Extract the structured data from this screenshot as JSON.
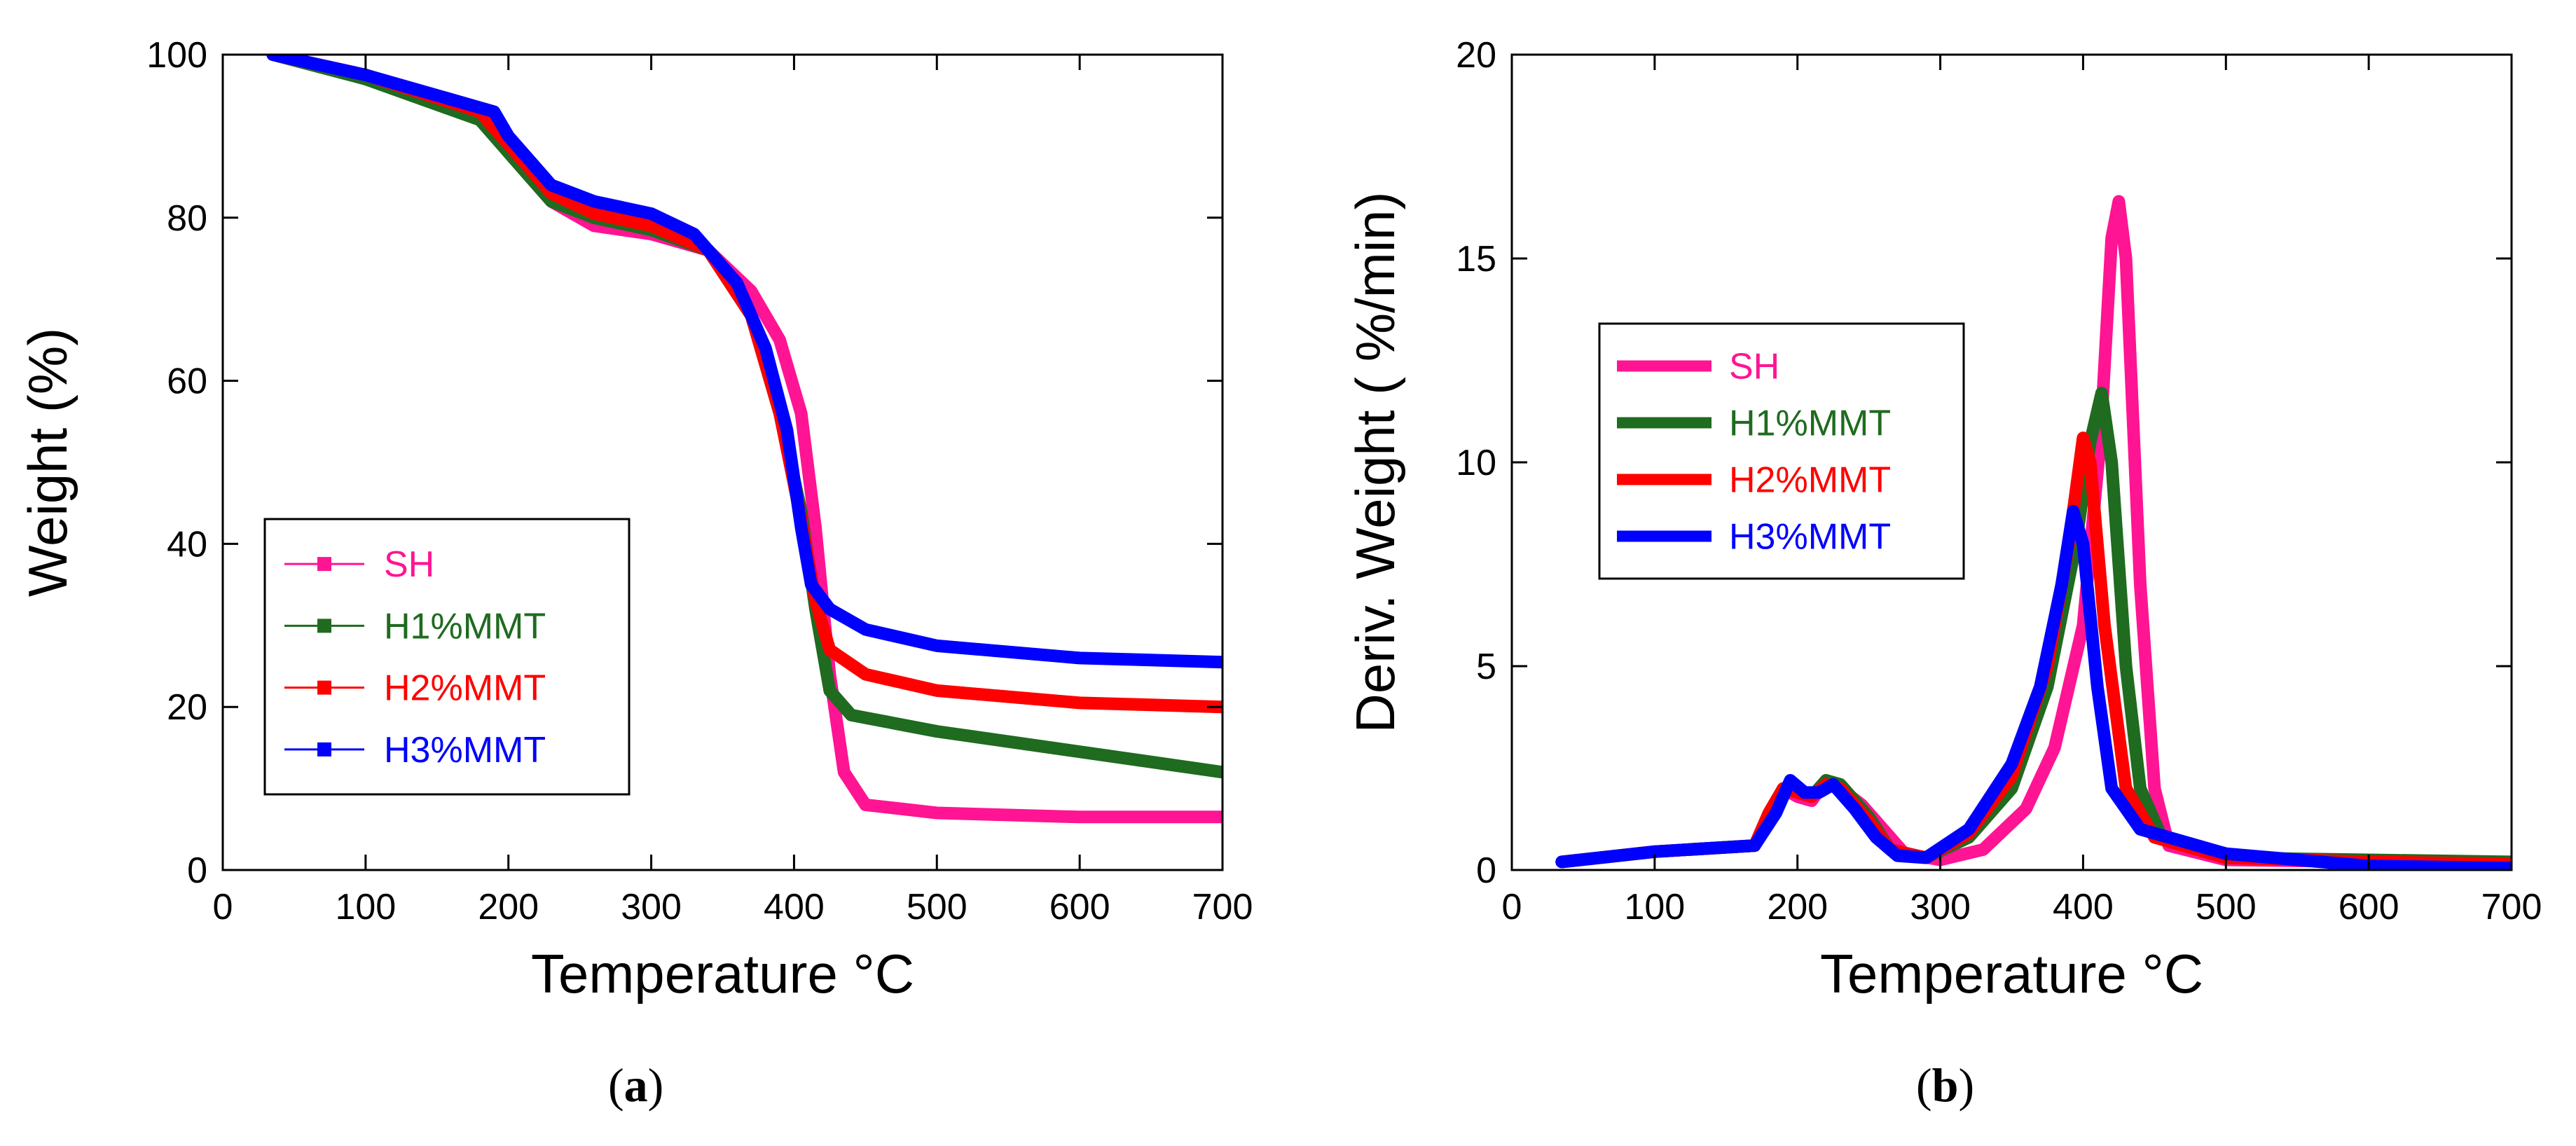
{
  "colors": {
    "SH": "#ff1493",
    "H1": "#1f6b1f",
    "H2": "#ff0000",
    "H3": "#0000ff",
    "frame": "#000000"
  },
  "chart_data": [
    {
      "id": "a",
      "panel_label": "a",
      "type": "line",
      "xlabel": "Temperature °C",
      "ylabel": "Weight (%)",
      "xlim": [
        0,
        700
      ],
      "ylim": [
        0,
        100
      ],
      "xticks": [
        "0",
        "100",
        "200",
        "300",
        "400",
        "500",
        "600",
        "700"
      ],
      "yticks": [
        "0",
        "20",
        "40",
        "60",
        "80",
        "100"
      ],
      "legend_position": "lower-left",
      "series": [
        {
          "name": "SH",
          "color_key": "SH",
          "points": [
            [
              35,
              100
            ],
            [
              100,
              97.5
            ],
            [
              180,
              93
            ],
            [
              200,
              88
            ],
            [
              230,
              82
            ],
            [
              260,
              79
            ],
            [
              300,
              78
            ],
            [
              340,
              76
            ],
            [
              370,
              71
            ],
            [
              390,
              65
            ],
            [
              405,
              56
            ],
            [
              415,
              42
            ],
            [
              425,
              24
            ],
            [
              435,
              12
            ],
            [
              450,
              8
            ],
            [
              500,
              7
            ],
            [
              600,
              6.5
            ],
            [
              700,
              6.5
            ]
          ]
        },
        {
          "name": "H1%MMT",
          "color_key": "H1",
          "points": [
            [
              35,
              100
            ],
            [
              100,
              97
            ],
            [
              180,
              92
            ],
            [
              200,
              88
            ],
            [
              230,
              82
            ],
            [
              260,
              80
            ],
            [
              300,
              78.5
            ],
            [
              340,
              76
            ],
            [
              370,
              68
            ],
            [
              390,
              56
            ],
            [
              405,
              44
            ],
            [
              415,
              32
            ],
            [
              425,
              22
            ],
            [
              440,
              19
            ],
            [
              500,
              17
            ],
            [
              600,
              14.5
            ],
            [
              700,
              12
            ]
          ]
        },
        {
          "name": "H2%MMT",
          "color_key": "H2",
          "points": [
            [
              35,
              100
            ],
            [
              100,
              97.5
            ],
            [
              180,
              93
            ],
            [
              200,
              89
            ],
            [
              230,
              83
            ],
            [
              260,
              80.5
            ],
            [
              300,
              79
            ],
            [
              340,
              76
            ],
            [
              370,
              68
            ],
            [
              390,
              56
            ],
            [
              405,
              43
            ],
            [
              415,
              33
            ],
            [
              425,
              27
            ],
            [
              450,
              24
            ],
            [
              500,
              22
            ],
            [
              600,
              20.5
            ],
            [
              700,
              20
            ]
          ]
        },
        {
          "name": "H3%MMT",
          "color_key": "H3",
          "points": [
            [
              35,
              100
            ],
            [
              100,
              97.5
            ],
            [
              190,
              93
            ],
            [
              200,
              90
            ],
            [
              230,
              84
            ],
            [
              260,
              82
            ],
            [
              300,
              80.5
            ],
            [
              330,
              78
            ],
            [
              360,
              72
            ],
            [
              380,
              64
            ],
            [
              395,
              54
            ],
            [
              405,
              42
            ],
            [
              412,
              35
            ],
            [
              425,
              32
            ],
            [
              450,
              29.5
            ],
            [
              500,
              27.5
            ],
            [
              600,
              26
            ],
            [
              700,
              25.5
            ]
          ]
        }
      ]
    },
    {
      "id": "b",
      "panel_label": "b",
      "type": "line",
      "xlabel": "Temperature °C",
      "ylabel": "Deriv. Weight ( %/min)",
      "xlim": [
        0,
        700
      ],
      "ylim": [
        0,
        20
      ],
      "xticks": [
        "0",
        "100",
        "200",
        "300",
        "400",
        "500",
        "600",
        "700"
      ],
      "yticks": [
        "0",
        "5",
        "10",
        "15",
        "20"
      ],
      "legend_position": "center-left",
      "series": [
        {
          "name": "SH",
          "color_key": "SH",
          "points": [
            [
              35,
              0.2
            ],
            [
              100,
              0.45
            ],
            [
              170,
              0.6
            ],
            [
              180,
              1.2
            ],
            [
              190,
              2.0
            ],
            [
              200,
              1.8
            ],
            [
              210,
              1.7
            ],
            [
              220,
              2.2
            ],
            [
              230,
              2.0
            ],
            [
              245,
              1.6
            ],
            [
              260,
              1.0
            ],
            [
              275,
              0.4
            ],
            [
              300,
              0.25
            ],
            [
              330,
              0.5
            ],
            [
              360,
              1.5
            ],
            [
              380,
              3.0
            ],
            [
              400,
              6.0
            ],
            [
              412,
              10.5
            ],
            [
              420,
              15.5
            ],
            [
              425,
              16.4
            ],
            [
              430,
              15.0
            ],
            [
              440,
              7.0
            ],
            [
              450,
              2.0
            ],
            [
              460,
              0.6
            ],
            [
              500,
              0.25
            ],
            [
              600,
              0.2
            ],
            [
              700,
              0.15
            ]
          ]
        },
        {
          "name": "H1%MMT",
          "color_key": "H1",
          "points": [
            [
              35,
              0.2
            ],
            [
              100,
              0.45
            ],
            [
              170,
              0.6
            ],
            [
              180,
              1.3
            ],
            [
              190,
              2.0
            ],
            [
              200,
              1.9
            ],
            [
              210,
              1.8
            ],
            [
              220,
              2.2
            ],
            [
              230,
              2.1
            ],
            [
              250,
              1.3
            ],
            [
              265,
              0.5
            ],
            [
              290,
              0.3
            ],
            [
              320,
              0.8
            ],
            [
              350,
              2.0
            ],
            [
              375,
              4.5
            ],
            [
              395,
              8.0
            ],
            [
              405,
              10.5
            ],
            [
              413,
              11.7
            ],
            [
              420,
              10.0
            ],
            [
              430,
              5.0
            ],
            [
              440,
              2.0
            ],
            [
              455,
              0.8
            ],
            [
              500,
              0.3
            ],
            [
              600,
              0.25
            ],
            [
              700,
              0.2
            ]
          ]
        },
        {
          "name": "H2%MMT",
          "color_key": "H2",
          "points": [
            [
              35,
              0.2
            ],
            [
              100,
              0.45
            ],
            [
              170,
              0.6
            ],
            [
              180,
              1.4
            ],
            [
              190,
              2.0
            ],
            [
              200,
              1.9
            ],
            [
              210,
              1.8
            ],
            [
              220,
              2.1
            ],
            [
              230,
              2.0
            ],
            [
              250,
              1.2
            ],
            [
              265,
              0.5
            ],
            [
              290,
              0.3
            ],
            [
              320,
              0.9
            ],
            [
              350,
              2.3
            ],
            [
              375,
              5.0
            ],
            [
              390,
              8.0
            ],
            [
              400,
              10.6
            ],
            [
              405,
              10.0
            ],
            [
              415,
              6.0
            ],
            [
              430,
              2.0
            ],
            [
              450,
              0.8
            ],
            [
              500,
              0.3
            ],
            [
              600,
              0.2
            ],
            [
              700,
              0.15
            ]
          ]
        },
        {
          "name": "H3%MMT",
          "color_key": "H3",
          "points": [
            [
              35,
              0.2
            ],
            [
              100,
              0.45
            ],
            [
              170,
              0.6
            ],
            [
              185,
              1.4
            ],
            [
              195,
              2.2
            ],
            [
              205,
              1.9
            ],
            [
              215,
              1.9
            ],
            [
              225,
              2.1
            ],
            [
              240,
              1.5
            ],
            [
              255,
              0.8
            ],
            [
              270,
              0.35
            ],
            [
              290,
              0.3
            ],
            [
              320,
              1.0
            ],
            [
              350,
              2.6
            ],
            [
              370,
              4.5
            ],
            [
              385,
              7.0
            ],
            [
              393,
              8.8
            ],
            [
              400,
              8.0
            ],
            [
              410,
              4.5
            ],
            [
              420,
              2.0
            ],
            [
              440,
              1.0
            ],
            [
              460,
              0.8
            ],
            [
              500,
              0.4
            ],
            [
              600,
              0.1
            ],
            [
              700,
              0.05
            ]
          ]
        }
      ]
    }
  ]
}
